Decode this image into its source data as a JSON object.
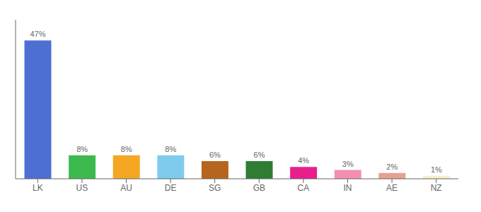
{
  "chart_data": {
    "type": "bar",
    "categories": [
      "LK",
      "US",
      "AU",
      "DE",
      "SG",
      "GB",
      "CA",
      "IN",
      "AE",
      "NZ"
    ],
    "values": [
      47,
      8,
      8,
      8,
      6,
      6,
      4,
      3,
      2,
      1
    ],
    "value_labels": [
      "47%",
      "8%",
      "8%",
      "8%",
      "6%",
      "6%",
      "4%",
      "3%",
      "2%",
      "1%"
    ],
    "data_labels": true,
    "colors": [
      "#4d6fd4",
      "#3dba4e",
      "#f5a623",
      "#7ecbee",
      "#b5651d",
      "#2e7d32",
      "#e91e8c",
      "#f48fb1",
      "#e8a090",
      "#f5f0c8"
    ],
    "ylim": [
      0,
      54
    ],
    "grid": false,
    "tick_labels": "x"
  }
}
